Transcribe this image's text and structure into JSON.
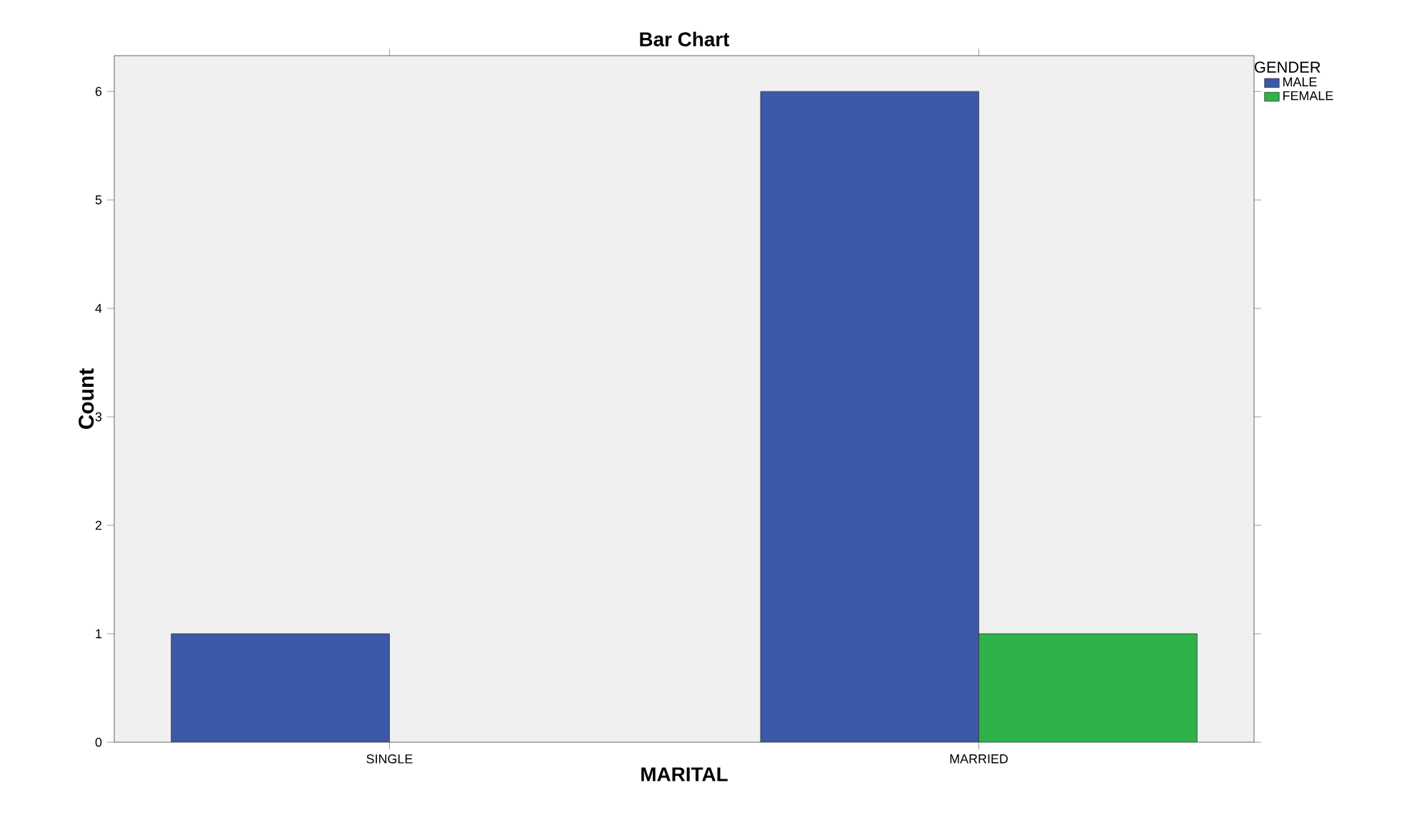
{
  "chart_data": {
    "type": "bar",
    "title": "Bar Chart",
    "xlabel": "MARITAL",
    "ylabel": "Count",
    "legend_title": "GENDER",
    "categories": [
      "SINGLE",
      "MARRIED"
    ],
    "series": [
      {
        "name": "MALE",
        "color": "#3c58a8",
        "values": [
          1,
          6
        ]
      },
      {
        "name": "FEMALE",
        "color": "#2db34a",
        "values": [
          null,
          1
        ]
      }
    ],
    "ylim": [
      0,
      6.33
    ],
    "yticks": [
      0,
      1,
      2,
      3,
      4,
      5,
      6
    ],
    "grid": false,
    "legend": "top right"
  }
}
